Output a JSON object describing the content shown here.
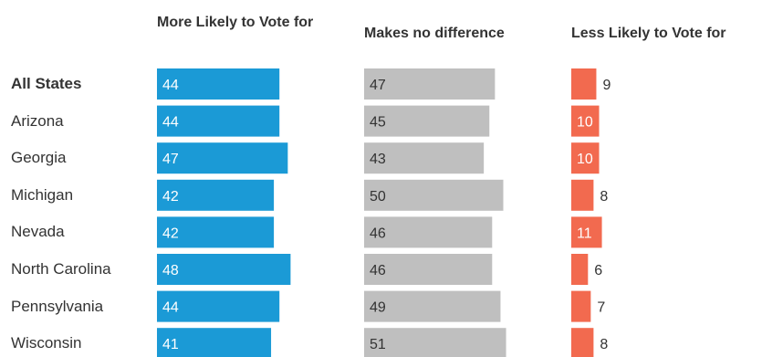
{
  "chart_data": {
    "type": "bar",
    "orientation": "horizontal",
    "layout": "small-multiples",
    "categories": [
      "All States",
      "Arizona",
      "Georgia",
      "Michigan",
      "Nevada",
      "North Carolina",
      "Pennsylvania",
      "Wisconsin"
    ],
    "series": [
      {
        "name": "More Likely to Vote for",
        "color": "#1b9ad6",
        "values": [
          44,
          44,
          47,
          42,
          42,
          48,
          44,
          41
        ]
      },
      {
        "name": "Makes no difference",
        "color": "#bfbfbf",
        "values": [
          47,
          45,
          43,
          50,
          46,
          46,
          49,
          51
        ]
      },
      {
        "name": "Less Likely to Vote for",
        "color": "#f26a4f",
        "values": [
          9,
          10,
          10,
          8,
          11,
          6,
          7,
          8
        ]
      }
    ],
    "headers": [
      "More Likely to Vote for",
      "Makes no difference",
      "Less Likely to Vote for"
    ],
    "xlim": [
      0,
      100
    ],
    "grid": false,
    "legend": "column headers",
    "data_labels": true
  }
}
